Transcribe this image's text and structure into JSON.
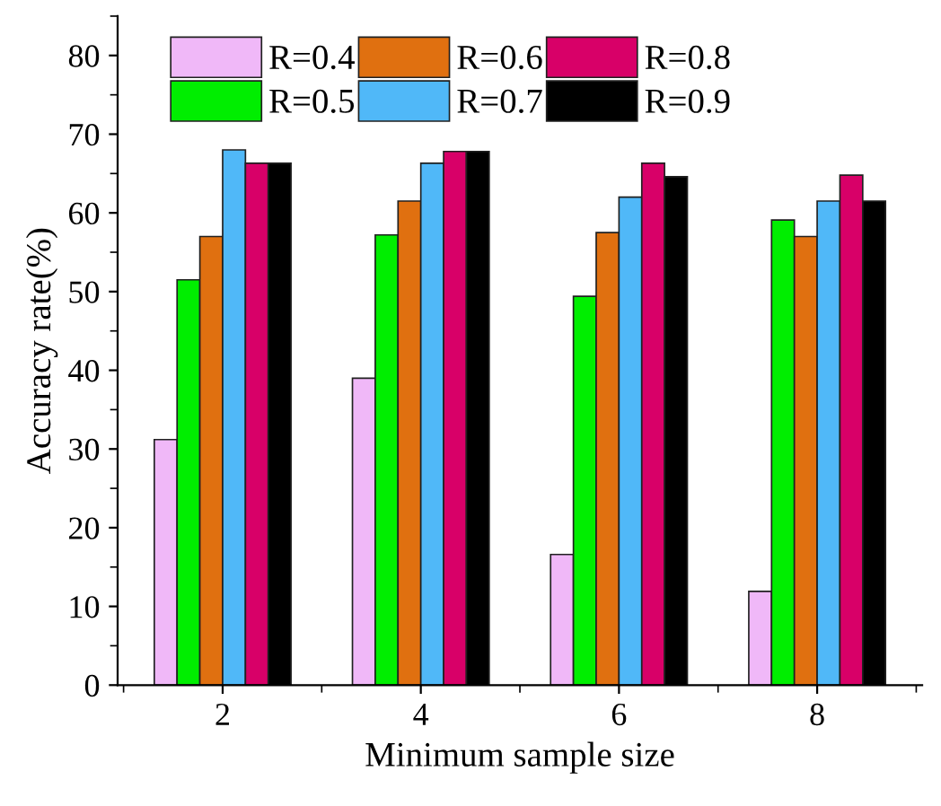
{
  "chart_data": {
    "type": "bar",
    "xlabel": "Minimum sample size",
    "ylabel": "Accuracy rate(%)",
    "categories": [
      "2",
      "4",
      "6",
      "8"
    ],
    "series": [
      {
        "name": "R=0.4",
        "color": "#f0b8f8",
        "values": [
          31.2,
          39.0,
          16.6,
          11.9
        ]
      },
      {
        "name": "R=0.5",
        "color": "#00ee00",
        "values": [
          51.5,
          57.2,
          49.4,
          59.1
        ]
      },
      {
        "name": "R=0.6",
        "color": "#e07010",
        "values": [
          57.0,
          61.5,
          57.5,
          57.0
        ]
      },
      {
        "name": "R=0.7",
        "color": "#50b8f8",
        "values": [
          68.0,
          66.3,
          62.0,
          61.5
        ]
      },
      {
        "name": "R=0.8",
        "color": "#d80068",
        "values": [
          66.3,
          67.8,
          66.3,
          64.8
        ]
      },
      {
        "name": "R=0.9",
        "color": "#000000",
        "values": [
          66.3,
          67.8,
          64.6,
          61.5
        ]
      }
    ],
    "ylim": [
      0,
      85
    ],
    "yticks": [
      0,
      10,
      20,
      30,
      40,
      50,
      60,
      70,
      80
    ],
    "grid": false,
    "legend": "top left"
  }
}
